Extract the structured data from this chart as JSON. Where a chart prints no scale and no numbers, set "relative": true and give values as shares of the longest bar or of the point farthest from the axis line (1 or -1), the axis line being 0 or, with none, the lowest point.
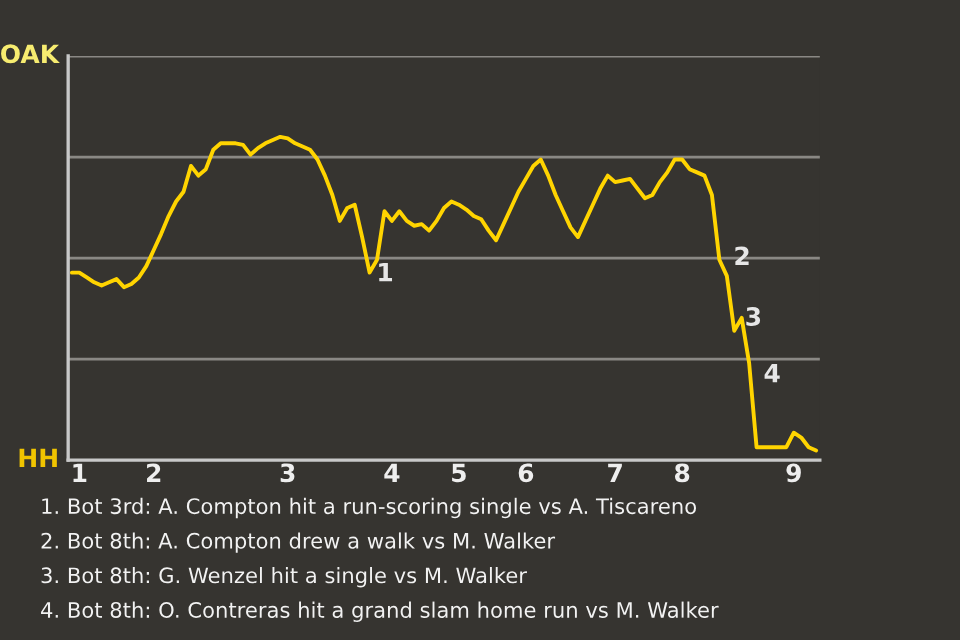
{
  "chart_data": {
    "type": "line",
    "relative": true,
    "categories": [
      null,
      "1",
      null,
      null,
      null,
      null,
      null,
      null,
      null,
      null,
      null,
      "2",
      null,
      null,
      null,
      null,
      null,
      null,
      null,
      null,
      null,
      null,
      null,
      null,
      null,
      null,
      null,
      null,
      null,
      "3",
      null,
      null,
      null,
      null,
      null,
      null,
      null,
      null,
      null,
      null,
      null,
      null,
      null,
      "4",
      null,
      null,
      null,
      null,
      null,
      null,
      null,
      null,
      "5",
      null,
      null,
      null,
      null,
      null,
      null,
      null,
      null,
      "6",
      null,
      null,
      null,
      null,
      null,
      null,
      null,
      null,
      null,
      null,
      null,
      "7",
      null,
      null,
      null,
      null,
      null,
      null,
      null,
      null,
      "8",
      null,
      null,
      null,
      null,
      null,
      null,
      null,
      null,
      null,
      null,
      null,
      null,
      null,
      null,
      "9",
      null,
      null,
      null
    ],
    "series": [
      {
        "color": "#ffd400",
        "values": [
          0.58,
          0.58,
          0.565,
          0.55,
          0.54,
          0.55,
          0.56,
          0.535,
          0.545,
          0.565,
          0.6,
          0.65,
          0.7,
          0.755,
          0.8,
          0.83,
          0.91,
          0.88,
          0.9,
          0.96,
          0.98,
          0.98,
          0.98,
          0.975,
          0.945,
          0.965,
          0.98,
          0.99,
          1.0,
          0.995,
          0.98,
          0.97,
          0.96,
          0.93,
          0.88,
          0.82,
          0.74,
          0.78,
          0.79,
          0.69,
          0.58,
          0.62,
          0.77,
          0.74,
          0.77,
          0.74,
          0.725,
          0.73,
          0.71,
          0.74,
          0.78,
          0.8,
          0.79,
          0.775,
          0.755,
          0.745,
          0.71,
          0.68,
          0.73,
          0.78,
          0.83,
          0.87,
          0.91,
          0.93,
          0.88,
          0.82,
          0.77,
          0.72,
          0.69,
          0.74,
          0.79,
          0.84,
          0.88,
          0.86,
          0.865,
          0.87,
          0.84,
          0.81,
          0.82,
          0.86,
          0.89,
          0.93,
          0.93,
          0.9,
          0.89,
          0.88,
          0.82,
          0.62,
          0.57,
          0.4,
          0.44,
          0.3,
          0.04,
          0.04,
          0.04,
          0.04,
          0.04,
          0.085,
          0.07,
          0.04,
          0.03
        ]
      }
    ],
    "grid": "y",
    "annotations": [
      "OAK",
      "HH",
      "1",
      "2",
      "3",
      "4",
      "1. Bot 3rd: A. Compton hit a run-scoring single vs A. Tiscareno",
      "2. Bot 8th: A. Compton drew a walk vs M. Walker",
      "3. Bot 8th: G. Wenzel hit a single vs M. Walker",
      "4. Bot 8th: O. Contreras hit a grand slam home run vs M. Walker"
    ]
  }
}
